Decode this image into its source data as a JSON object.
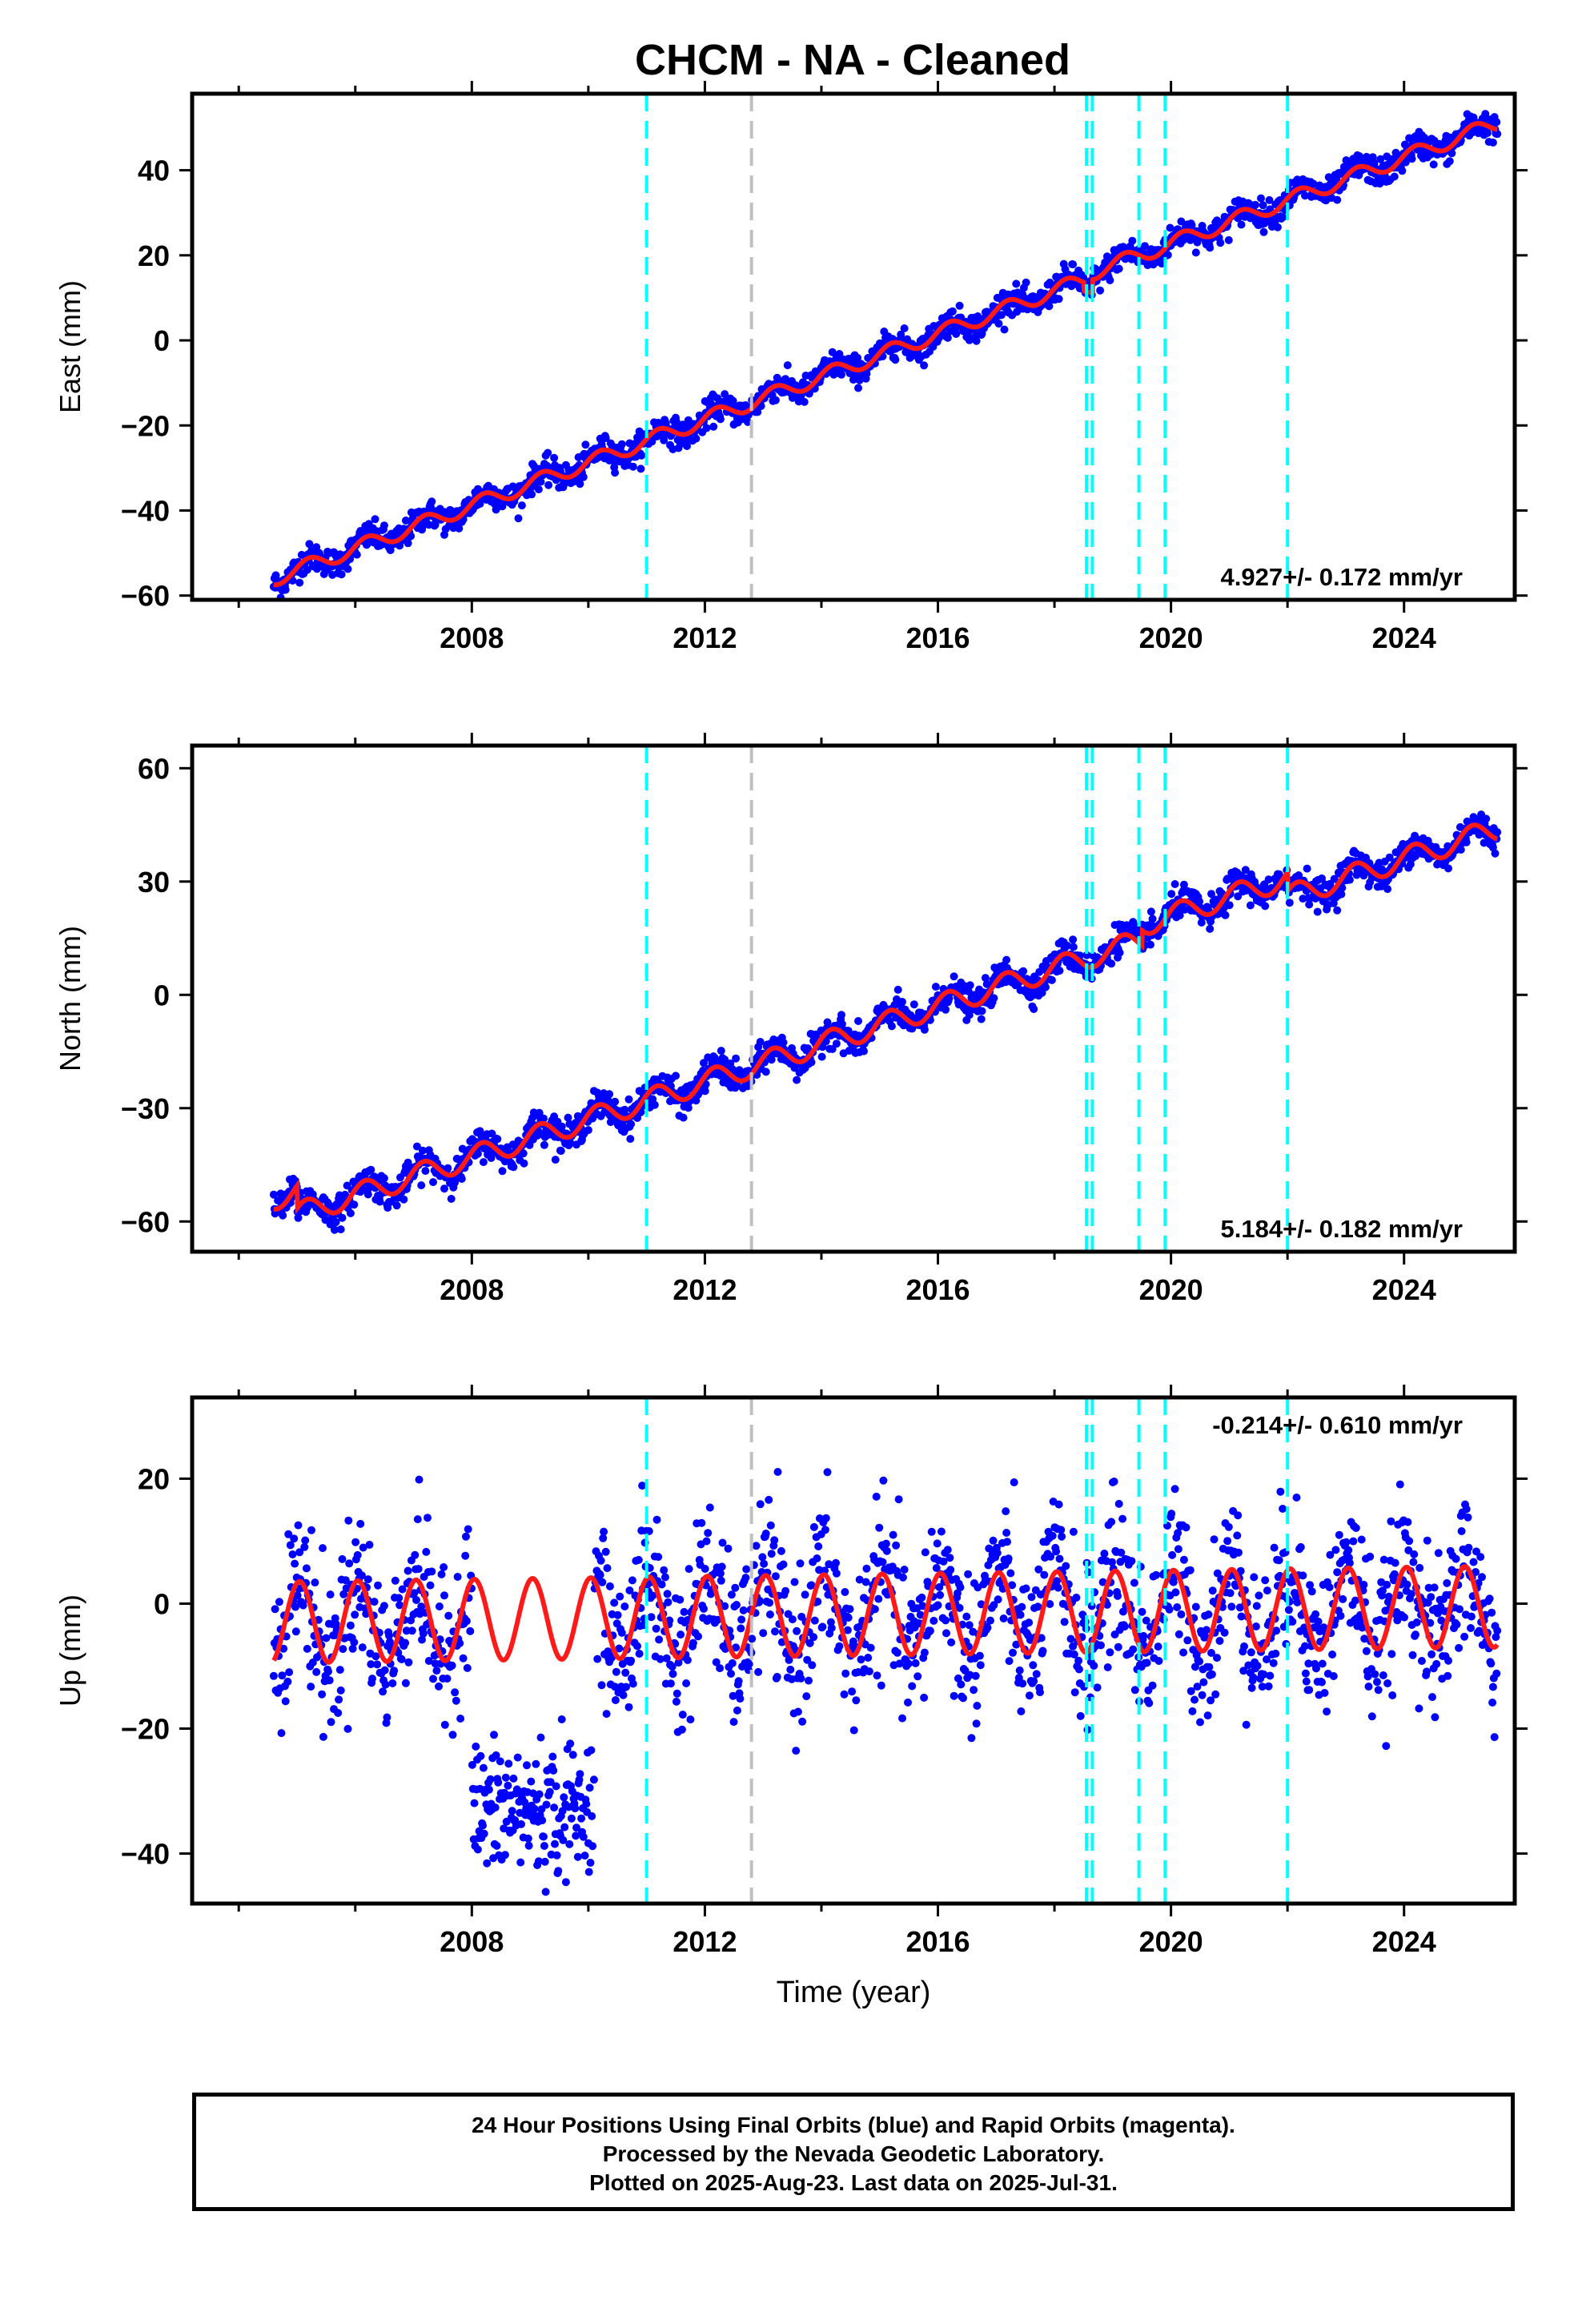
{
  "title": "CHCM  - NA - Cleaned",
  "footer": {
    "line1": "24 Hour Positions Using Final Orbits (blue) and Rapid Orbits (magenta).",
    "line2": "Processed by the Nevada Geodetic Laboratory.",
    "line3": "Plotted on 2025-Aug-23. Last data on 2025-Jul-31."
  },
  "colors": {
    "data_points": "#0000ff",
    "model_fit": "#ff1a1a",
    "equipment_change": "#00ffff",
    "other_event": "#c0c0c0",
    "frame": "#000000"
  },
  "chart_data": [
    {
      "type": "scatter",
      "component": "East",
      "ylabel": "East (mm)",
      "xlabel": "",
      "xlim": [
        2003.2,
        2025.9
      ],
      "ylim": [
        -61,
        58
      ],
      "xticks": [
        2008,
        2012,
        2016,
        2020,
        2024
      ],
      "yticks": [
        -60,
        -40,
        -20,
        0,
        20,
        40
      ],
      "ytick_labels": [
        "−60",
        "−40",
        "−20",
        "0",
        "20",
        "40"
      ],
      "rate_label": "4.927+/- 0.172 mm/yr",
      "rate_label_position": "bottom-right",
      "model": {
        "start": 2004.6,
        "end": 2025.6,
        "value_at_start": -56.0,
        "rate_mm_per_yr": 5.05,
        "annual_amplitude": 1.8,
        "phase": 0.3,
        "offsets": [
          [
            2018.5,
            -2.0
          ],
          [
            2018.65,
            3.0
          ]
        ]
      },
      "scatter": {
        "spread": 1.6,
        "gaps": []
      }
    },
    {
      "type": "scatter",
      "component": "North",
      "ylabel": "North (mm)",
      "xlabel": "",
      "xlim": [
        2003.2,
        2025.9
      ],
      "ylim": [
        -68,
        66
      ],
      "xticks": [
        2008,
        2012,
        2016,
        2020,
        2024
      ],
      "yticks": [
        -60,
        -30,
        0,
        30,
        60
      ],
      "ytick_labels": [
        "−60",
        "−30",
        "0",
        "30",
        "60"
      ],
      "rate_label": "5.184+/- 0.182 mm/yr",
      "rate_label_position": "bottom-right",
      "model": {
        "start": 2004.6,
        "end": 2025.6,
        "value_at_start": -54.0,
        "rate_mm_per_yr": 5.0,
        "annual_amplitude": 3.0,
        "phase": 0.5,
        "offsets": [
          [
            2005.0,
            -6.0
          ],
          [
            2019.5,
            4.0
          ],
          [
            2022.0,
            -5.0
          ]
        ]
      },
      "scatter": {
        "spread": 2.0,
        "gaps": []
      }
    },
    {
      "type": "scatter",
      "component": "Up",
      "ylabel": "Up (mm)",
      "xlabel": "Time (year)",
      "xlim": [
        2003.2,
        2025.9
      ],
      "ylim": [
        -48,
        33
      ],
      "xticks": [
        2008,
        2012,
        2016,
        2020,
        2024
      ],
      "yticks": [
        -40,
        -20,
        0,
        20
      ],
      "ytick_labels": [
        "−40",
        "−20",
        "0",
        "20"
      ],
      "rate_label": "-0.214+/- 0.610 mm/yr",
      "rate_label_position": "top-right",
      "model": {
        "start": 2004.6,
        "end": 2025.6,
        "value_at_start": -3.0,
        "rate_mm_per_yr": 0.12,
        "annual_amplitude": 6.5,
        "phase": 1.3,
        "offsets": []
      },
      "scatter": {
        "spread": 6.0,
        "gaps": [],
        "anomaly": {
          "from": 2008.0,
          "to": 2010.1,
          "value": -33.0,
          "spread": 5.5
        }
      }
    }
  ],
  "event_lines": {
    "equipment_change": [
      2011.0,
      2018.55,
      2018.65,
      2019.45,
      2019.9,
      2022.0
    ],
    "other_event": [
      2012.8
    ]
  }
}
